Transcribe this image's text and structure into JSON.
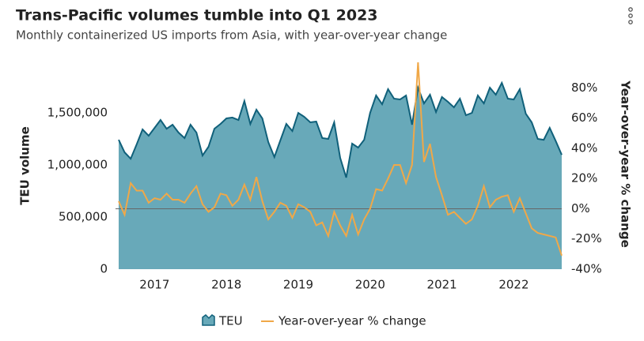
{
  "chart_data": {
    "type": "area-line",
    "title": "Trans-Pacific volumes tumble into Q1 2023",
    "subtitle": "Monthly containerized US imports from Asia, with year-over-year change",
    "y_label": "TEU volume",
    "y2_label": "Year-over-year % change",
    "x": [
      2017,
      2017.083,
      2017.167,
      2017.25,
      2017.333,
      2017.417,
      2017.5,
      2017.583,
      2017.667,
      2017.75,
      2017.833,
      2017.917,
      2018,
      2018.083,
      2018.167,
      2018.25,
      2018.333,
      2018.417,
      2018.5,
      2018.583,
      2018.667,
      2018.75,
      2018.833,
      2018.917,
      2019,
      2019.083,
      2019.167,
      2019.25,
      2019.333,
      2019.417,
      2019.5,
      2019.583,
      2019.667,
      2019.75,
      2019.833,
      2019.917,
      2020,
      2020.083,
      2020.167,
      2020.25,
      2020.333,
      2020.417,
      2020.5,
      2020.583,
      2020.667,
      2020.75,
      2020.833,
      2020.917,
      2021,
      2021.083,
      2021.167,
      2021.25,
      2021.333,
      2021.417,
      2021.5,
      2021.583,
      2021.667,
      2021.75,
      2021.833,
      2021.917,
      2022,
      2022.083,
      2022.167,
      2022.25,
      2022.333,
      2022.417,
      2022.5,
      2022.583,
      2022.667,
      2022.75,
      2022.833,
      2022.917,
      2023,
      2023.083,
      2023.167
    ],
    "series": [
      {
        "name": "TEU",
        "color": "#68a9b9",
        "line_color": "#10607a",
        "axis": "y",
        "values": [
          1242000,
          1121000,
          1060000,
          1197000,
          1341000,
          1280000,
          1356000,
          1432000,
          1348000,
          1386000,
          1311000,
          1258000,
          1386000,
          1311000,
          1091000,
          1174000,
          1348000,
          1394000,
          1447000,
          1455000,
          1432000,
          1614000,
          1394000,
          1530000,
          1447000,
          1220000,
          1076000,
          1235000,
          1394000,
          1326000,
          1500000,
          1462000,
          1409000,
          1417000,
          1258000,
          1250000,
          1409000,
          1068000,
          879000,
          1205000,
          1167000,
          1242000,
          1500000,
          1667000,
          1583000,
          1727000,
          1636000,
          1629000,
          1667000,
          1386000,
          1742000,
          1591000,
          1674000,
          1508000,
          1652000,
          1606000,
          1553000,
          1636000,
          1477000,
          1500000,
          1667000,
          1591000,
          1742000,
          1674000,
          1788000,
          1636000,
          1629000,
          1727000,
          1492000,
          1409000,
          1250000,
          1242000,
          1356000,
          1230000,
          1098000
        ]
      },
      {
        "name": "Year-over-year % change",
        "color": "#f0a848",
        "axis": "y2",
        "values": [
          5,
          -4,
          17,
          12,
          12,
          4,
          7,
          6,
          10,
          6,
          6,
          4,
          10,
          15,
          3,
          -2,
          1,
          10,
          9,
          2,
          6,
          16,
          6,
          21,
          5,
          -7,
          -2,
          4,
          2,
          -6,
          3,
          1,
          -2,
          -11,
          -9,
          -18,
          -2,
          -11,
          -18,
          -4,
          -17,
          -7,
          0,
          13,
          12,
          20,
          29,
          29,
          17,
          29,
          97,
          31,
          43,
          21,
          9,
          -4,
          -2,
          -6,
          -10,
          -7,
          2,
          15,
          1,
          6,
          8,
          9,
          -2,
          7,
          -3,
          -13,
          -16,
          -17,
          -18,
          -19,
          -31
        ]
      }
    ],
    "xlim": [
      2017,
      2023.167
    ],
    "xticks": [
      {
        "value": 2017.5,
        "label": "2017"
      },
      {
        "value": 2018.5,
        "label": "2018"
      },
      {
        "value": 2019.5,
        "label": "2019"
      },
      {
        "value": 2020.5,
        "label": "2020"
      },
      {
        "value": 2021.5,
        "label": "2021"
      },
      {
        "value": 2022.5,
        "label": "2022"
      }
    ],
    "ylim": [
      0,
      2000000
    ],
    "yticks": [
      0,
      {
        "value": 500000,
        "label": "500,000"
      },
      {
        "value": 1000000,
        "label": "1,000,000"
      },
      {
        "value": 1500000,
        "label": "1,500,000"
      }
    ],
    "y2lim": [
      -40,
      98
    ],
    "y2ticks": [
      {
        "value": -40,
        "label": "-40%"
      },
      {
        "value": -20,
        "label": "-20%"
      },
      {
        "value": 0,
        "label": "0%"
      },
      {
        "value": 20,
        "label": "20%"
      },
      {
        "value": 40,
        "label": "40%"
      },
      {
        "value": 60,
        "label": "60%"
      },
      {
        "value": 80,
        "label": "80%"
      }
    ],
    "y2_reference_line": 0,
    "legend": "bottom"
  }
}
